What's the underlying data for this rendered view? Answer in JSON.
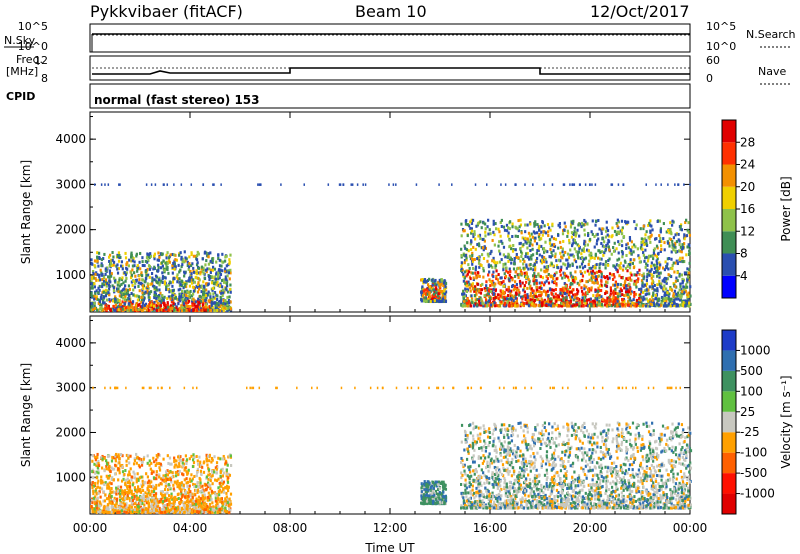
{
  "header": {
    "title": "Pykkvibaer (fitACF)",
    "beam": "Beam 10",
    "date": "12/Oct/2017"
  },
  "labels": {
    "nsky": "N.Sky",
    "nsearch": "N.Search",
    "freq_top": "Freq.",
    "freq_unit": "[MHz]",
    "cpid": "CPID",
    "nave": "Nave",
    "mode": "normal (fast stereo) 153",
    "slant_range": "Slant Range [km]",
    "time_ut": "Time UT",
    "power_label": "Power [dB]",
    "velocity_label": "Velocity [m s⁻¹]"
  },
  "noise_axis": {
    "left_ticks": [
      "10^5",
      "10^0"
    ],
    "right_ticks": [
      "10^5",
      "10^0"
    ]
  },
  "freq_axis": {
    "left_ticks": [
      "12",
      "8"
    ],
    "right_ticks": [
      "60",
      "0"
    ]
  },
  "chart_data": [
    {
      "type": "heatmap",
      "name": "power",
      "ylabel": "Slant Range [km]",
      "xlabel": "",
      "ylim": [
        180,
        4600
      ],
      "y_ticks": [
        "1000",
        "2000",
        "3000",
        "4000"
      ],
      "x_ticks": [
        "00:00",
        "04:00",
        "08:00",
        "12:00",
        "16:00",
        "20:00",
        "00:00"
      ],
      "colorbar": {
        "label": "Power [dB]",
        "ticks": [
          "4",
          "8",
          "12",
          "16",
          "20",
          "24",
          "28"
        ],
        "colors": [
          "#0000ff",
          "#2a4fb0",
          "#3f8e55",
          "#8fc24a",
          "#f0d000",
          "#f39000",
          "#ff3000",
          "#e00000"
        ]
      },
      "clusters": [
        {
          "t0": 0.0,
          "t1": 5.6,
          "r0": 200,
          "r1": 1500,
          "core_r0": 200,
          "core_r1": 420,
          "core_t0": 0.5,
          "core_t1": 4.8,
          "level": "mixed"
        },
        {
          "t0": 13.2,
          "t1": 14.2,
          "r0": 400,
          "r1": 900,
          "core_r0": 450,
          "core_r1": 800,
          "core_t0": 13.3,
          "core_t1": 14.0,
          "level": "high"
        },
        {
          "t0": 14.8,
          "t1": 24.0,
          "r0": 300,
          "r1": 2200,
          "core_r0": 300,
          "core_r1": 1100,
          "core_t0": 15.0,
          "core_t1": 22.0,
          "level": "high"
        }
      ]
    },
    {
      "type": "heatmap",
      "name": "velocity",
      "ylabel": "Slant Range [km]",
      "xlabel": "Time UT",
      "ylim": [
        180,
        4600
      ],
      "y_ticks": [
        "1000",
        "2000",
        "3000",
        "4000"
      ],
      "x_ticks": [
        "00:00",
        "04:00",
        "08:00",
        "12:00",
        "16:00",
        "20:00",
        "00:00"
      ],
      "colorbar": {
        "label": "Velocity [m s⁻¹]",
        "ticks": [
          "1000",
          "500",
          "100",
          "25",
          "-25",
          "-100",
          "-500",
          "-1000"
        ],
        "colors": [
          "#1e3cc8",
          "#2f6fb0",
          "#3e9160",
          "#60c040",
          "#c8c8c0",
          "#ffa000",
          "#ff6000",
          "#ff1000",
          "#e00000"
        ]
      },
      "clusters": [
        {
          "t0": 0.0,
          "t1": 5.6,
          "r0": 200,
          "r1": 1500,
          "level": "negative"
        },
        {
          "t0": 13.2,
          "t1": 14.2,
          "r0": 400,
          "r1": 900,
          "level": "positive"
        },
        {
          "t0": 14.8,
          "t1": 24.0,
          "r0": 300,
          "r1": 2200,
          "level": "mixed"
        }
      ]
    }
  ]
}
